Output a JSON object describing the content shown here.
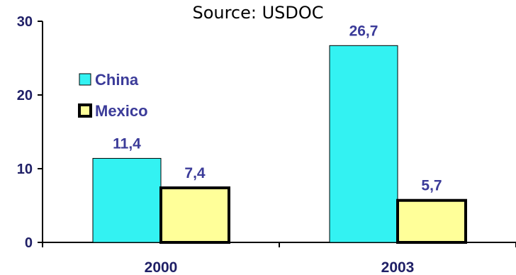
{
  "chart_data": {
    "type": "bar",
    "subtitle": "Source:  USDOC",
    "categories": [
      "2000",
      "2003"
    ],
    "series": [
      {
        "name": "China",
        "values": [
          11.4,
          26.7
        ],
        "labels": [
          "11,4",
          "26,7"
        ],
        "color": "#33f2f2"
      },
      {
        "name": "Mexico",
        "values": [
          7.4,
          5.7
        ],
        "labels": [
          "7,4",
          "5,7"
        ],
        "color": "#ffff99"
      }
    ],
    "ylim": [
      0,
      30
    ],
    "yticks": [
      0,
      10,
      20,
      30
    ],
    "legend_position": "top-left",
    "grid": false
  }
}
